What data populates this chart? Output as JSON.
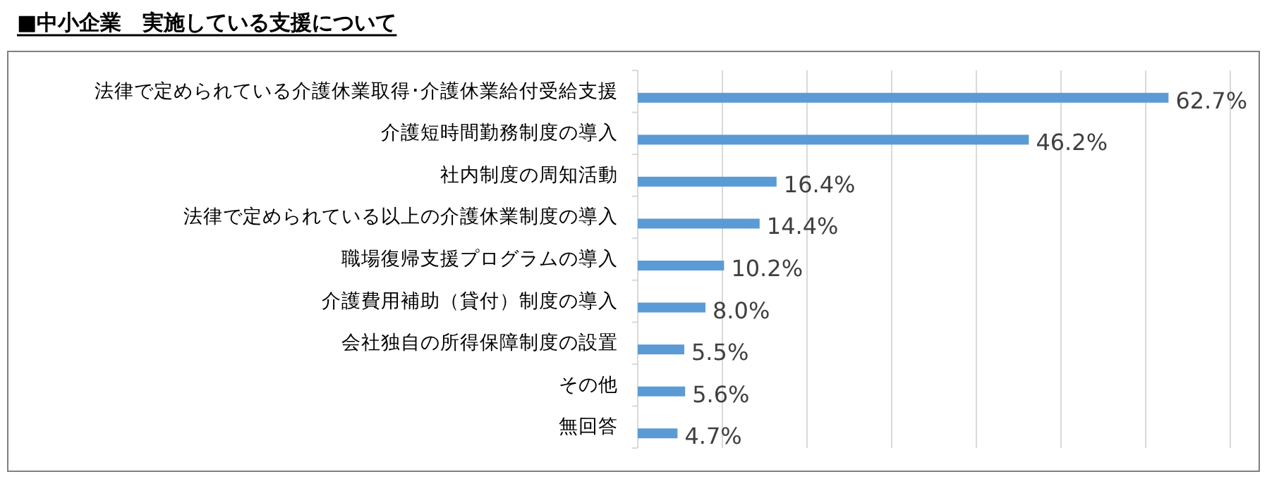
{
  "chart_data": {
    "type": "bar",
    "orientation": "horizontal",
    "title": "■中小企業　実施している支援について",
    "categories": [
      "法律で定められている介護休業取得･介護休業給付受給支援",
      "介護短時間勤務制度の導入",
      "社内制度の周知活動",
      "法律で定められている以上の介護休業制度の導入",
      "職場復帰支援プログラムの導入",
      "介護費用補助（貸付）制度の導入",
      "会社独自の所得保障制度の設置",
      "その他",
      "無回答"
    ],
    "values": [
      62.7,
      46.2,
      16.4,
      14.4,
      10.2,
      8.0,
      5.5,
      5.6,
      4.7
    ],
    "value_labels": [
      "62.7%",
      "46.2%",
      "16.4%",
      "14.4%",
      "10.2%",
      "8.0%",
      "5.5%",
      "5.6%",
      "4.7%"
    ],
    "color": "#5b9bd5",
    "xlim": [
      0,
      70
    ],
    "xticks": [
      {
        "value": 0,
        "label": null
      },
      {
        "value": 10,
        "label": null
      },
      {
        "value": 20,
        "label": null
      },
      {
        "value": 30,
        "label": null
      },
      {
        "value": 40,
        "label": null
      },
      {
        "value": 50,
        "label": null
      },
      {
        "value": 60,
        "label": null
      },
      {
        "value": 70,
        "label": null
      }
    ],
    "grid": "x",
    "tick_labels": "y"
  }
}
